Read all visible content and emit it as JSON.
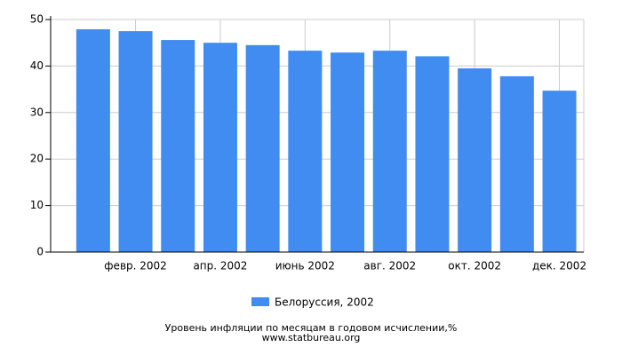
{
  "chart_data": {
    "type": "bar",
    "categories": [
      null,
      "февр. 2002",
      null,
      "апр. 2002",
      null,
      "июнь 2002",
      null,
      "авг. 2002",
      null,
      "окт. 2002",
      null,
      "дек. 2002"
    ],
    "series": [
      {
        "name": "Белоруссия, 2002",
        "color": "#418cf0",
        "values": [
          47.9,
          47.5,
          45.6,
          45.0,
          44.5,
          43.3,
          42.9,
          43.3,
          42.1,
          39.5,
          37.8,
          34.7
        ]
      }
    ],
    "ylim": [
      0,
      50
    ],
    "yticks": [
      0,
      10,
      20,
      30,
      40,
      50
    ],
    "grid": true,
    "legend": "bottom",
    "x_label": "Уровень инфляции по месяцам в годовом исчислении,%",
    "source": "www.statbureau.org"
  }
}
